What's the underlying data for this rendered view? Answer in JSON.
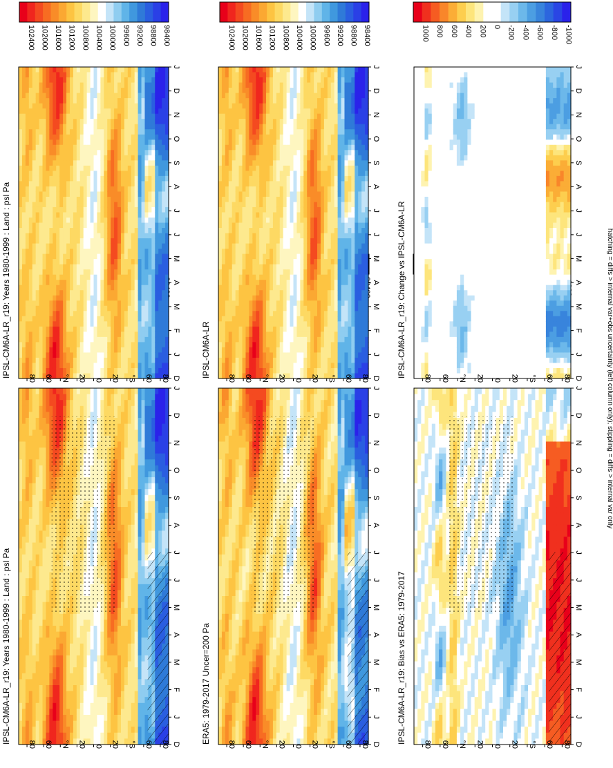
{
  "figure": {
    "footnote": "hatching = diffs > internal var+obs uncertainty (left column only); stippling = diffs > internal var only"
  },
  "chart_data": [
    {
      "type": "heatmap",
      "title": "IPSL-CM6A-LR_r19: Years 1980-1999 : Land : psl Pa",
      "x_ticks": [
        "D",
        "J",
        "F",
        "M",
        "A",
        "M",
        "J",
        "J",
        "A",
        "S",
        "O",
        "N",
        "D",
        "J"
      ],
      "y_ticks": [
        "80",
        "60",
        "°N",
        "20",
        "0",
        "20",
        "°S",
        "60",
        "80"
      ],
      "colorbar_ticks": [
        "102400",
        "102000",
        "101600",
        "101200",
        "100800",
        "100400",
        "100000",
        "99600",
        "99200",
        "98800",
        "98400"
      ],
      "kind": "field",
      "variant": 0,
      "hatched": true,
      "stippled": true
    },
    {
      "type": "heatmap",
      "title": "IPSL-CM6A-LR_r19: Years 1980-1999 : Land : psl Pa",
      "x_ticks": [
        "D",
        "J",
        "F",
        "M",
        "A",
        "M",
        "J",
        "J",
        "A",
        "S",
        "O",
        "N",
        "D",
        "J"
      ],
      "y_ticks": [
        "80",
        "60",
        "°N",
        "20",
        "0",
        "20",
        "°S",
        "60",
        "80"
      ],
      "colorbar_ticks": [
        "102400",
        "102000",
        "101600",
        "101200",
        "100800",
        "100400",
        "100000",
        "99600",
        "99200",
        "98800",
        "98400"
      ],
      "kind": "field",
      "variant": 0,
      "hatched": false,
      "stippled": false
    },
    {
      "type": "heatmap",
      "title": "ERA5: 1979-2017 Uncer=200 Pa",
      "x_ticks": [
        "D",
        "J",
        "F",
        "M",
        "A",
        "M",
        "J",
        "J",
        "A",
        "S",
        "O",
        "N",
        "D",
        "J"
      ],
      "y_ticks": [
        "80",
        "60",
        "°N",
        "20",
        "0",
        "20",
        "°S",
        "60",
        "80"
      ],
      "colorbar_ticks": [
        "102400",
        "102000",
        "101600",
        "101200",
        "100800",
        "100400",
        "100000",
        "99600",
        "99200",
        "98800",
        "98400"
      ],
      "kind": "field",
      "variant": 1,
      "hatched": true,
      "stippled": true
    },
    {
      "type": "heatmap",
      "title": "IPSL-CM6A-LR",
      "x_ticks": [
        "D",
        "J",
        "F",
        "M",
        "A",
        "M",
        "J",
        "J",
        "A",
        "S",
        "O",
        "N",
        "D",
        "J"
      ],
      "y_ticks": [
        "80",
        "60",
        "°N",
        "20",
        "0",
        "20",
        "°S",
        "60",
        "80"
      ],
      "colorbar_ticks": [
        "102400",
        "102000",
        "101600",
        "101200",
        "100800",
        "100400",
        "100000",
        "99600",
        "99200",
        "98800",
        "98400"
      ],
      "kind": "field",
      "variant": 0,
      "hatched": false,
      "stippled": false
    },
    {
      "type": "heatmap",
      "title": "IPSL-CM6A-LR_r19: Bias vs ERA5: 1979-2017",
      "x_ticks": [
        "D",
        "J",
        "F",
        "M",
        "A",
        "M",
        "J",
        "J",
        "A",
        "S",
        "O",
        "N",
        "D",
        "J"
      ],
      "y_ticks": [
        "80",
        "60",
        "°N",
        "20",
        "0",
        "20",
        "°S",
        "60",
        "80"
      ],
      "colorbar_ticks": [
        "1000",
        "800",
        "600",
        "400",
        "200",
        "0",
        "-200",
        "-400",
        "-600",
        "-800",
        "-1000"
      ],
      "kind": "bias",
      "variant": 0,
      "hatched": true,
      "stippled": true
    },
    {
      "type": "heatmap",
      "title": "IPSL-CM6A-LR_r19: Change vs IPSL-CM6A-LR",
      "x_ticks": [
        "D",
        "J",
        "F",
        "M",
        "A",
        "M",
        "J",
        "J",
        "A",
        "S",
        "O",
        "N",
        "D",
        "J"
      ],
      "y_ticks": [
        "80",
        "60",
        "°N",
        "20",
        "0",
        "20",
        "°S",
        "60",
        "80"
      ],
      "colorbar_ticks": [
        "1000",
        "800",
        "600",
        "400",
        "200",
        "0",
        "-200",
        "-400",
        "-600",
        "-800",
        "-1000"
      ],
      "kind": "change",
      "variant": 0,
      "hatched": false,
      "stippled": false
    }
  ],
  "colors": {
    "field": [
      "#e8001a",
      "#f0261e",
      "#f44a20",
      "#f76c22",
      "#f98c28",
      "#fba832",
      "#fdc442",
      "#fdd963",
      "#fde98e",
      "#fef6c0",
      "#ffffff",
      "#c4e4f8",
      "#8fcdf0",
      "#60b4e8",
      "#4098de",
      "#2f7ad8",
      "#2a5ee0",
      "#2a40e6",
      "#2a22ea"
    ],
    "diff": [
      "#e8001a",
      "#f0301e",
      "#f65c22",
      "#f9862a",
      "#fbad36",
      "#fdce4e",
      "#fde57c",
      "#fef3b0",
      "#ffffff",
      "#ffffff",
      "#c4e4f8",
      "#98d0f2",
      "#6cb8ea",
      "#4c9ee2",
      "#3884dc",
      "#2c66de",
      "#2a46e4",
      "#2a22ea"
    ]
  }
}
